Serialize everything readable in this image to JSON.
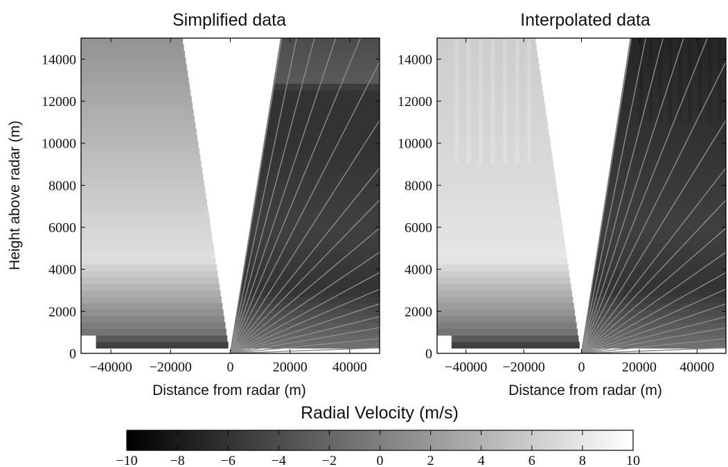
{
  "chart_data": [
    {
      "type": "heatmap",
      "title": "Simplified data",
      "xlabel": "Distance from radar (m)",
      "ylabel": "Height above radar (m)",
      "xlim": [
        -50000,
        50000
      ],
      "ylim": [
        0,
        15000
      ],
      "x_ticks": [
        -40000,
        -20000,
        0,
        20000,
        40000
      ],
      "x_tick_labels": [
        "−40000",
        "−20000",
        "0",
        "20000",
        "40000"
      ],
      "y_ticks": [
        0,
        2000,
        4000,
        6000,
        8000,
        10000,
        12000,
        14000
      ],
      "y_tick_labels": [
        "0",
        "2000",
        "4000",
        "6000",
        "8000",
        "10000",
        "12000",
        "14000"
      ],
      "radial_velocity_profile_left": [
        {
          "height": 250,
          "value": -6
        },
        {
          "height": 1000,
          "value": -1
        },
        {
          "height": 4500,
          "value": 7.5
        },
        {
          "height": 9000,
          "value": 5
        },
        {
          "height": 15000,
          "value": 1.5
        }
      ],
      "radial_velocity_profile_right": [
        {
          "height": 250,
          "value": -1
        },
        {
          "height": 3000,
          "value": -6
        },
        {
          "height": 6000,
          "value": -5
        },
        {
          "height": 10000,
          "value": -6
        },
        {
          "height": 12600,
          "value": -6
        },
        {
          "height": 13000,
          "value": -3
        },
        {
          "height": 15000,
          "value": -4
        }
      ]
    },
    {
      "type": "heatmap",
      "title": "Interpolated data",
      "xlabel": "Distance from radar (m)",
      "ylabel": "",
      "xlim": [
        -50000,
        50000
      ],
      "ylim": [
        0,
        15000
      ],
      "x_ticks": [
        -40000,
        -20000,
        0,
        20000,
        40000
      ],
      "x_tick_labels": [
        "−40000",
        "−20000",
        "0",
        "20000",
        "40000"
      ],
      "y_ticks": [
        0,
        2000,
        4000,
        6000,
        8000,
        10000,
        12000,
        14000
      ],
      "y_tick_labels": [
        "0",
        "2000",
        "4000",
        "6000",
        "8000",
        "10000",
        "12000",
        "14000"
      ],
      "radial_velocity_profile_left": [
        {
          "height": 250,
          "value": -6
        },
        {
          "height": 1000,
          "value": -1
        },
        {
          "height": 4500,
          "value": 8
        },
        {
          "height": 9000,
          "value": 7
        },
        {
          "height": 15000,
          "value": 6
        }
      ],
      "radial_velocity_profile_right": [
        {
          "height": 250,
          "value": -1
        },
        {
          "height": 3000,
          "value": -6
        },
        {
          "height": 6000,
          "value": -5
        },
        {
          "height": 10000,
          "value": -6
        },
        {
          "height": 15000,
          "value": -7
        }
      ]
    }
  ],
  "colorbar": {
    "label": "Radial Velocity (m/s)",
    "range": [
      -10,
      10
    ],
    "ticks": [
      -10,
      -8,
      -6,
      -4,
      -2,
      0,
      2,
      4,
      6,
      8,
      10
    ],
    "tick_labels": [
      "−10",
      "−8",
      "−6",
      "−4",
      "−2",
      "0",
      "2",
      "4",
      "6",
      "8",
      "10"
    ],
    "colors": [
      "#000000",
      "#ffffff"
    ]
  },
  "data_extent": {
    "left_edge_x": [
      -50000,
      -45000
    ],
    "left_inner_edge_at_top_x": -16000,
    "left_inner_edge_at_bottom_x": -500,
    "right_inner_edge_at_top_x": 17000,
    "radar_x": 0
  }
}
